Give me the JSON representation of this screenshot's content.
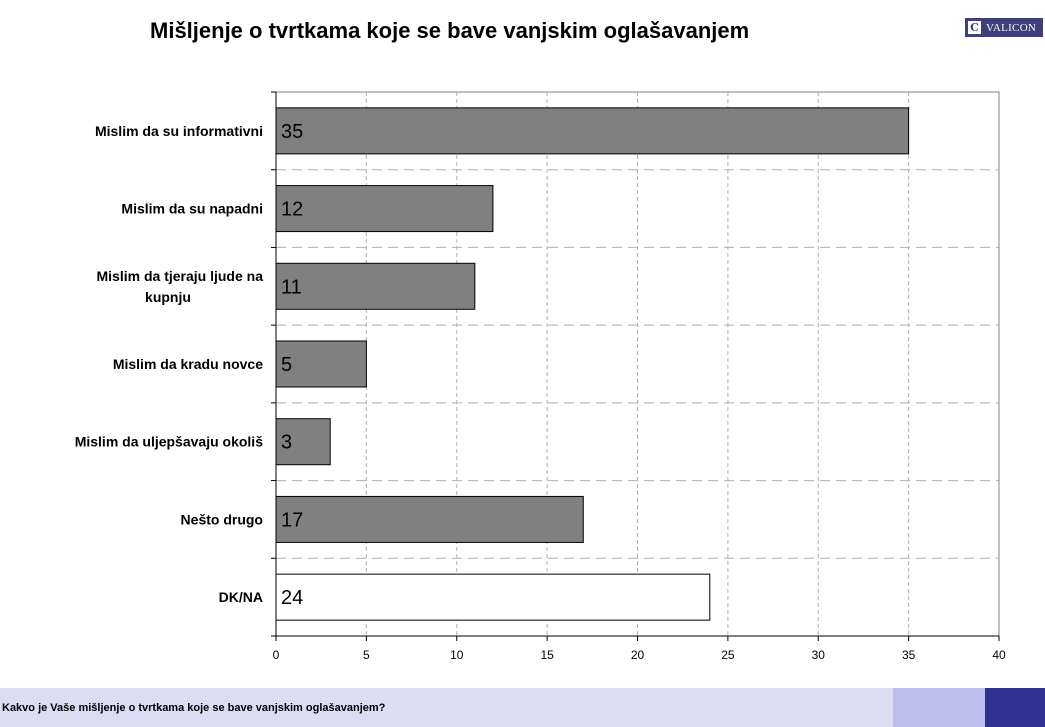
{
  "colors": {
    "bar": "#808080",
    "bar_last": "#ffffff",
    "logo_bg": "#3c3f7a",
    "footer_light": "#dcdcf4",
    "footer_mid": "#bcbcee",
    "footer_dark": "#2e3190"
  },
  "logo": {
    "mark": "C",
    "text": "VALICON"
  },
  "footer": {
    "question": "Kakvo je Vaše mišljenje o tvrtkama koje se bave vanjskim oglašavanjem?"
  },
  "chart_data": {
    "type": "bar",
    "orientation": "horizontal",
    "title": "Mišljenje o tvrtkama koje se bave vanjskim oglašavanjem",
    "categories": [
      [
        "Mislim da su informativni"
      ],
      [
        "Mislim da su napadni"
      ],
      [
        "Mislim da tjeraju ljude na",
        "kupnju"
      ],
      [
        "Mislim da kradu novce"
      ],
      [
        "Mislim da uljepšavaju okoliš"
      ],
      [
        "Nešto drugo"
      ],
      [
        "DK/NA"
      ]
    ],
    "values": [
      35,
      12,
      11,
      5,
      3,
      17,
      24
    ],
    "xlim": [
      0,
      40
    ],
    "xticks": [
      0,
      5,
      10,
      15,
      20,
      25,
      30,
      35,
      40
    ],
    "grid": true,
    "legend": "none"
  }
}
